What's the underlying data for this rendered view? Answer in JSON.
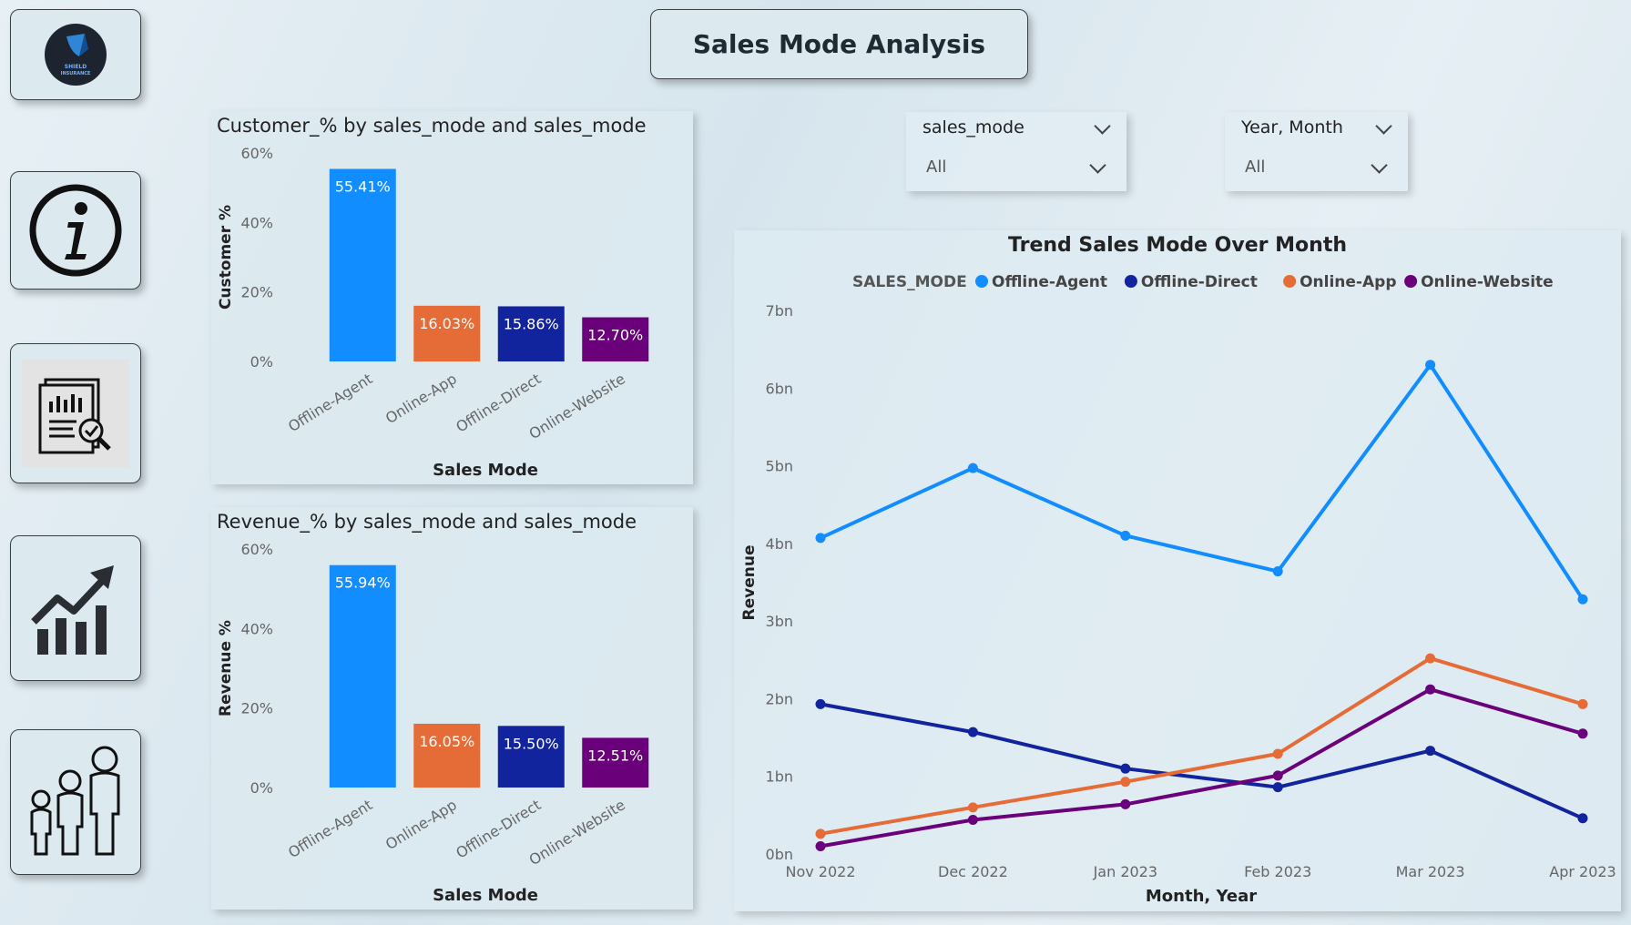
{
  "page_title": "Sales Mode Analysis",
  "logo": {
    "text_top": "SHIELD",
    "text_bottom": "INSURANCE"
  },
  "nav_icons": [
    "info-icon",
    "report-analysis-icon",
    "growth-chart-icon",
    "people-icon"
  ],
  "slicers": [
    {
      "label": "sales_mode",
      "value": "All"
    },
    {
      "label": "Year, Month",
      "value": "All"
    }
  ],
  "colors": {
    "offline_agent": "#118DFF",
    "online_app": "#E66C37",
    "offline_direct": "#12239E",
    "online_website": "#6B007B"
  },
  "chart_data": [
    {
      "type": "bar",
      "title": "Customer_% by sales_mode and sales_mode",
      "xlabel": "Sales Mode",
      "ylabel": "Customer %",
      "categories": [
        "Offline-Agent",
        "Online-App",
        "Offline-Direct",
        "Online-Website"
      ],
      "values": [
        55.41,
        16.03,
        15.86,
        12.7
      ],
      "data_labels": [
        "55.41%",
        "16.03%",
        "15.86%",
        "12.70%"
      ],
      "ylim": [
        0,
        60
      ],
      "yticks": [
        "0%",
        "20%",
        "40%",
        "60%"
      ]
    },
    {
      "type": "bar",
      "title": "Revenue_% by sales_mode and sales_mode",
      "xlabel": "Sales Mode",
      "ylabel": "Revenue %",
      "categories": [
        "Offline-Agent",
        "Online-App",
        "Offline-Direct",
        "Online-Website"
      ],
      "values": [
        55.94,
        16.05,
        15.5,
        12.51
      ],
      "data_labels": [
        "55.94%",
        "16.05%",
        "15.50%",
        "12.51%"
      ],
      "ylim": [
        0,
        60
      ],
      "yticks": [
        "0%",
        "20%",
        "40%",
        "60%"
      ]
    },
    {
      "type": "line",
      "title": "Trend Sales Mode Over Month",
      "xlabel": "Month, Year",
      "ylabel": "Revenue",
      "legend_title": "SALES_MODE",
      "legend_position": "top",
      "x": [
        "Nov 2022",
        "Dec 2022",
        "Jan 2023",
        "Feb 2023",
        "Mar 2023",
        "Apr 2023"
      ],
      "ylim": [
        0,
        7
      ],
      "yticks": [
        "0bn",
        "1bn",
        "2bn",
        "3bn",
        "4bn",
        "5bn",
        "6bn",
        "7bn"
      ],
      "series": [
        {
          "name": "Offline-Agent",
          "values": [
            4.07,
            4.97,
            4.1,
            3.64,
            6.3,
            3.28
          ]
        },
        {
          "name": "Offline-Direct",
          "values": [
            1.93,
            1.57,
            1.1,
            0.86,
            1.33,
            0.46
          ]
        },
        {
          "name": "Online-App",
          "values": [
            0.26,
            0.6,
            0.93,
            1.29,
            2.52,
            1.93
          ]
        },
        {
          "name": "Online-Website",
          "values": [
            0.1,
            0.44,
            0.64,
            1.01,
            2.12,
            1.55
          ]
        }
      ]
    }
  ]
}
